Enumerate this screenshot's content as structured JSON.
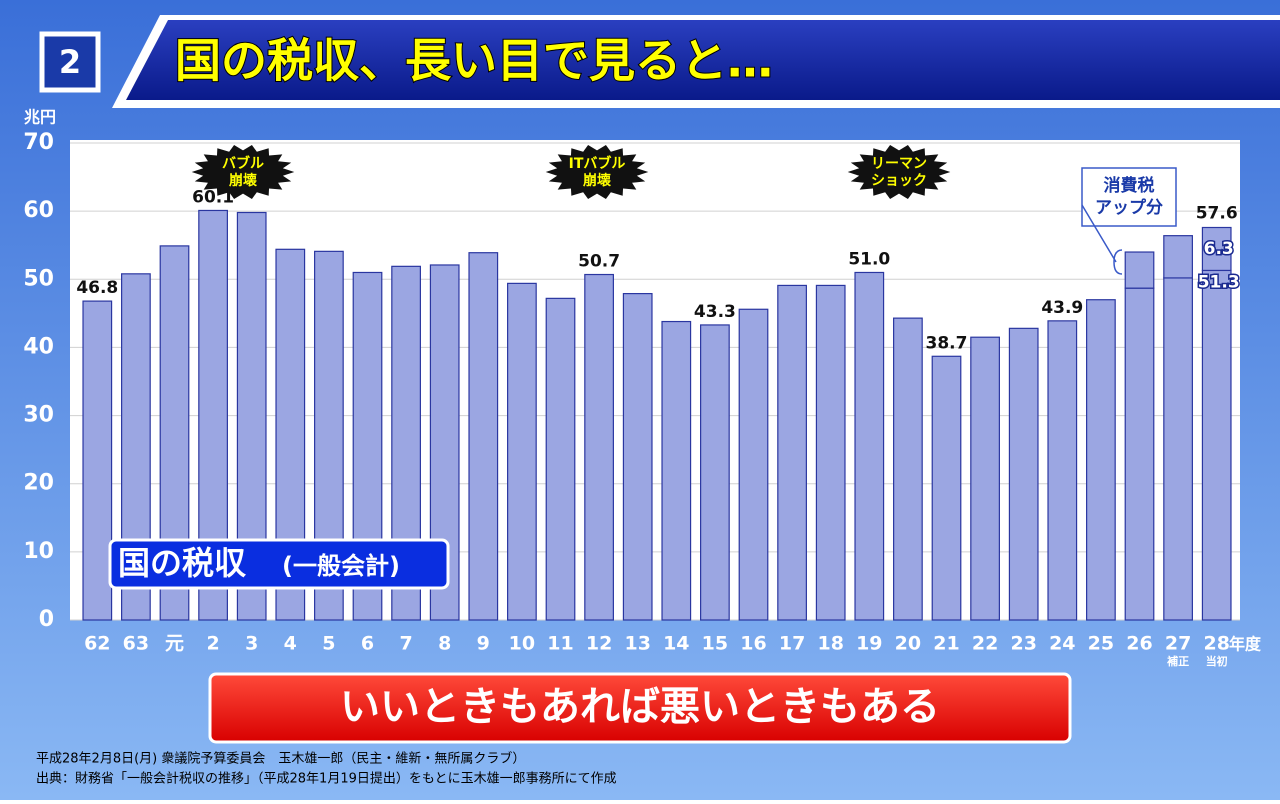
{
  "header": {
    "number": "2",
    "title": "国の税収、長い目で見ると…"
  },
  "chart_data": {
    "type": "stacked-bar",
    "y_unit": "兆円",
    "x_unit": "年度",
    "categories": [
      "62",
      "63",
      "元",
      "2",
      "3",
      "4",
      "5",
      "6",
      "7",
      "8",
      "9",
      "10",
      "11",
      "12",
      "13",
      "14",
      "15",
      "16",
      "17",
      "18",
      "19",
      "20",
      "21",
      "22",
      "23",
      "24",
      "25",
      "26",
      "27",
      "28"
    ],
    "category_notes": [
      null,
      null,
      null,
      null,
      null,
      null,
      null,
      null,
      null,
      null,
      null,
      null,
      null,
      null,
      null,
      null,
      null,
      null,
      null,
      null,
      null,
      null,
      null,
      null,
      null,
      null,
      null,
      null,
      "補正",
      "当初"
    ],
    "series": [
      {
        "color": "#9ba6e2",
        "values": [
          46.8,
          50.8,
          54.9,
          60.1,
          59.8,
          54.4,
          54.1,
          51.0,
          51.9,
          52.1,
          53.9,
          49.4,
          47.2,
          50.7,
          47.9,
          43.8,
          43.3,
          45.6,
          49.1,
          49.1,
          51.0,
          44.3,
          38.7,
          41.5,
          42.8,
          43.9,
          47.0,
          48.7,
          50.2,
          51.3
        ],
        "value_labels": [
          "46.8",
          null,
          null,
          "60.1",
          null,
          null,
          null,
          null,
          null,
          null,
          null,
          null,
          null,
          "50.7",
          null,
          null,
          "43.3",
          null,
          null,
          null,
          "51.0",
          null,
          "38.7",
          null,
          null,
          "43.9",
          null,
          null,
          null,
          "51.3"
        ]
      },
      {
        "color": "#9ba6e2",
        "values": [
          null,
          null,
          null,
          null,
          null,
          null,
          null,
          null,
          null,
          null,
          null,
          null,
          null,
          null,
          null,
          null,
          null,
          null,
          null,
          null,
          null,
          null,
          null,
          null,
          null,
          null,
          null,
          5.3,
          6.2,
          6.3
        ],
        "value_labels": [
          null,
          null,
          null,
          null,
          null,
          null,
          null,
          null,
          null,
          null,
          null,
          null,
          null,
          null,
          null,
          null,
          null,
          null,
          null,
          null,
          null,
          null,
          null,
          null,
          null,
          null,
          null,
          null,
          null,
          "6.3"
        ]
      }
    ],
    "total_label": "57.6",
    "ylim": [
      0,
      70
    ],
    "yticks": [
      0,
      10,
      20,
      30,
      40,
      50,
      60,
      70
    ],
    "grid": true,
    "events": [
      {
        "lines": [
          "バブル",
          "崩壊"
        ]
      },
      {
        "lines": [
          "ITバブル",
          "崩壊"
        ]
      },
      {
        "lines": [
          "リーマン",
          "ショック"
        ]
      }
    ],
    "tax_note": [
      "消費税",
      "アップ分"
    ],
    "label": {
      "main": "国の税収",
      "sub": "(一般会計)"
    }
  },
  "banner": "いいときもあれば悪いときもある",
  "footnotes": [
    "平成28年2月8日(月) 衆議院予算委員会　玉木雄一郎（民主・維新・無所属クラブ）",
    "出典：財務省「一般会計税収の推移」（平成28年1月19日提出）をもとに玉木雄一郎事務所にて作成"
  ]
}
